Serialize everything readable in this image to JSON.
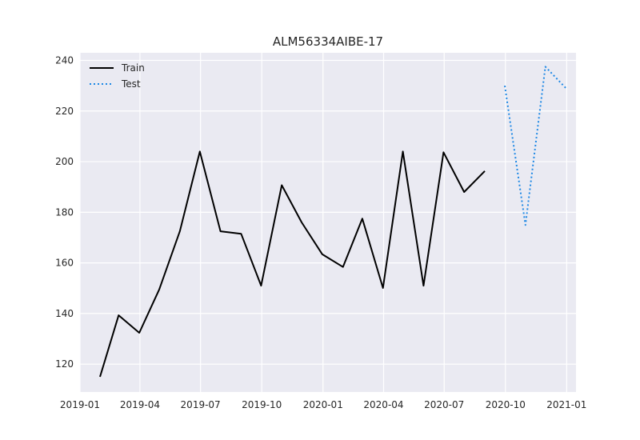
{
  "chart_data": {
    "type": "line",
    "title": "ALM56334AIBE-17",
    "xlabel": "",
    "ylabel": "",
    "grid": true,
    "legend_position": "top-left",
    "ylim": [
      109,
      243
    ],
    "xlim": [
      "2019-01-01",
      "2021-01-15"
    ],
    "yticks": [
      120,
      140,
      160,
      180,
      200,
      220,
      240
    ],
    "xticks": [
      "2019-01",
      "2019-04",
      "2019-07",
      "2019-10",
      "2020-01",
      "2020-04",
      "2020-07",
      "2020-10",
      "2021-01"
    ],
    "series": [
      {
        "name": "Train",
        "color": "#000000",
        "style": "solid",
        "points": [
          {
            "x": "2019-01-31",
            "y": 115
          },
          {
            "x": "2019-02-28",
            "y": 139.3
          },
          {
            "x": "2019-03-31",
            "y": 132.4
          },
          {
            "x": "2019-04-30",
            "y": 149.5
          },
          {
            "x": "2019-05-31",
            "y": 172.5
          },
          {
            "x": "2019-06-30",
            "y": 204
          },
          {
            "x": "2019-07-31",
            "y": 172.5
          },
          {
            "x": "2019-08-31",
            "y": 171.5
          },
          {
            "x": "2019-09-30",
            "y": 151
          },
          {
            "x": "2019-10-31",
            "y": 190.7
          },
          {
            "x": "2019-11-30",
            "y": 176
          },
          {
            "x": "2019-12-31",
            "y": 163.4
          },
          {
            "x": "2020-01-31",
            "y": 158.4
          },
          {
            "x": "2020-02-29",
            "y": 177.5
          },
          {
            "x": "2020-03-31",
            "y": 150.1
          },
          {
            "x": "2020-04-30",
            "y": 204
          },
          {
            "x": "2020-05-31",
            "y": 151
          },
          {
            "x": "2020-06-30",
            "y": 203.7
          },
          {
            "x": "2020-07-31",
            "y": 188
          },
          {
            "x": "2020-08-31",
            "y": 196.3
          }
        ]
      },
      {
        "name": "Test",
        "color": "#1e88e5",
        "style": "dotted",
        "points": [
          {
            "x": "2020-09-30",
            "y": 230
          },
          {
            "x": "2020-10-31",
            "y": 175
          },
          {
            "x": "2020-11-30",
            "y": 237.5
          },
          {
            "x": "2020-12-31",
            "y": 229
          }
        ]
      }
    ]
  }
}
